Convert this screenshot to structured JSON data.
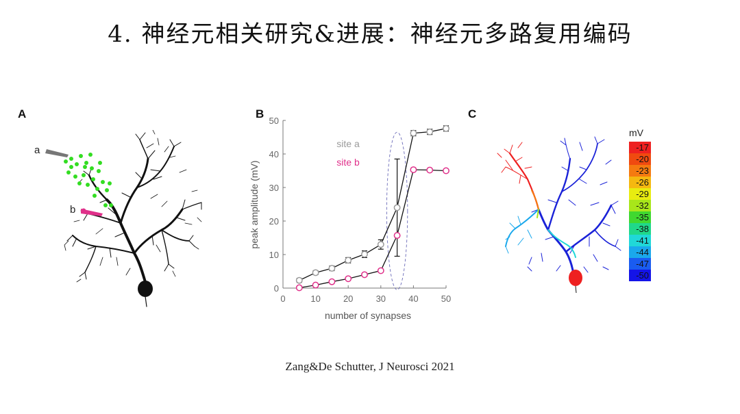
{
  "slide": {
    "title": "4. 神经元相关研究&进展：神经元多路复用编码",
    "citation": "Zang&De Schutter, J Neurosci 2021"
  },
  "panels": {
    "a": {
      "letter": "A",
      "site_a": "a",
      "site_b": "b",
      "colors": {
        "neuron": "#111111",
        "synapses": "#33dd22",
        "electrode_b": "#e0308a"
      }
    },
    "b": {
      "letter": "B"
    },
    "c": {
      "letter": "C",
      "colorbar": {
        "unit": "mV",
        "labels": [
          "-17",
          "-20",
          "-23",
          "-26",
          "-29",
          "-32",
          "-35",
          "-38",
          "-41",
          "-44",
          "-47",
          "-50"
        ],
        "colors": [
          "#ee2020",
          "#f04a10",
          "#f57a10",
          "#f5b810",
          "#e8ec10",
          "#a8e61a",
          "#40d830",
          "#20d88a",
          "#20d8d8",
          "#1aa8ec",
          "#1a5cf0",
          "#1414e8"
        ]
      }
    }
  },
  "chart_data": {
    "type": "line",
    "title": "",
    "xlabel": "number of synapses",
    "ylabel": "peak amplitude (mV)",
    "xlim": [
      0,
      50
    ],
    "ylim": [
      0,
      50
    ],
    "xticks": [
      "0",
      "10",
      "20",
      "30",
      "40",
      "50"
    ],
    "yticks": [
      "0",
      "10",
      "20",
      "30",
      "40",
      "50"
    ],
    "grid": false,
    "legend_position": "top-center",
    "series": [
      {
        "name": "site a",
        "color": "#9a9a9a",
        "x": [
          5,
          10,
          15,
          20,
          25,
          30,
          35,
          40,
          45,
          50
        ],
        "y": [
          2.3,
          4.6,
          5.9,
          8.3,
          10.1,
          13.0,
          24.0,
          46.2,
          46.6,
          47.6
        ],
        "err": [
          0.6,
          0.6,
          0.7,
          0.8,
          1.0,
          1.4,
          14.5,
          0.8,
          0.8,
          0.8
        ]
      },
      {
        "name": "site b",
        "color": "#e0308a",
        "x": [
          5,
          10,
          15,
          20,
          25,
          30,
          35,
          40,
          45,
          50
        ],
        "y": [
          0.1,
          0.9,
          1.9,
          2.8,
          4.0,
          5.2,
          15.7,
          35.3,
          35.2,
          35.0
        ],
        "err": [
          0.2,
          0.2,
          0.2,
          0.3,
          0.3,
          0.4,
          0,
          0.5,
          0.4,
          0.4
        ]
      }
    ],
    "annotation": {
      "type": "dashed-ellipse",
      "center": [
        35,
        23
      ],
      "rx": 3.2,
      "ry": 23.5
    }
  }
}
